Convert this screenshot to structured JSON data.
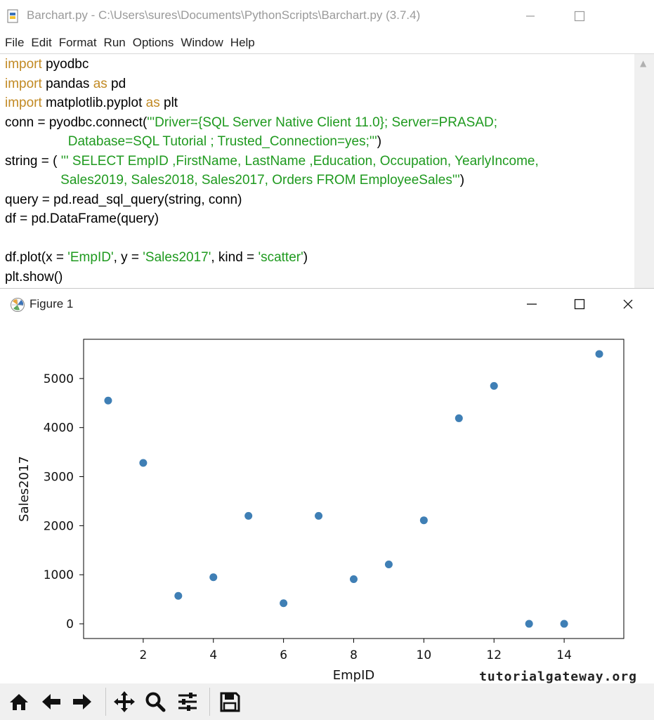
{
  "idle": {
    "title": "Barchart.py - C:\\Users\\sures\\Documents\\PythonScripts\\Barchart.py (3.7.4)",
    "menu": [
      "File",
      "Edit",
      "Format",
      "Run",
      "Options",
      "Window",
      "Help"
    ],
    "code": {
      "l1_kw": "import",
      "l1_rest": " pyodbc",
      "l2_kw": "import",
      "l2_mid": " pandas ",
      "l2_kw2": "as",
      "l2_rest": " pd",
      "l3_kw": "import",
      "l3_mid": " matplotlib.pyplot ",
      "l3_kw2": "as",
      "l3_rest": " plt",
      "l4_pre": "conn = pyodbc.connect(",
      "l4_str": "'''Driver={SQL Server Native Client 11.0}; Server=PRASAD;",
      "l5_str": "                 Database=SQL Tutorial ; Trusted_Connection=yes;'''",
      "l5_post": ")",
      "l6_pre": "string = ( ",
      "l6_str": "''' SELECT EmpID ,FirstName, LastName ,Education, Occupation, YearlyIncome,",
      "l7_str": "               Sales2019, Sales2018, Sales2017, Orders FROM EmployeeSales'''",
      "l7_post": ")",
      "l8": "query = pd.read_sql_query(string, conn)",
      "l9": "df = pd.DataFrame(query)",
      "l10": "",
      "l11_pre": "df.plot(x = ",
      "l11_s1": "'EmpID'",
      "l11_mid": ", y = ",
      "l11_s2": "'Sales2017'",
      "l11_mid2": ", kind = ",
      "l11_s3": "'scatter'",
      "l11_post": ")",
      "l12": "plt.show()"
    }
  },
  "figure": {
    "title": "Figure 1",
    "watermark": "tutorialgateway.org"
  },
  "chart_data": {
    "type": "scatter",
    "xlabel": "EmpID",
    "ylabel": "Sales2017",
    "x": [
      1,
      2,
      3,
      4,
      5,
      6,
      7,
      8,
      9,
      10,
      11,
      12,
      13,
      14,
      15
    ],
    "y": [
      4550,
      3280,
      570,
      950,
      2200,
      420,
      2200,
      910,
      1210,
      2110,
      4190,
      4850,
      0,
      0,
      5500
    ],
    "xlim": [
      0.3,
      15.7
    ],
    "ylim": [
      -300,
      5800
    ],
    "xticks": [
      2,
      4,
      6,
      8,
      10,
      12,
      14
    ],
    "yticks": [
      0,
      1000,
      2000,
      3000,
      4000,
      5000
    ],
    "marker_color": "#3f7fb5",
    "grid": false
  }
}
